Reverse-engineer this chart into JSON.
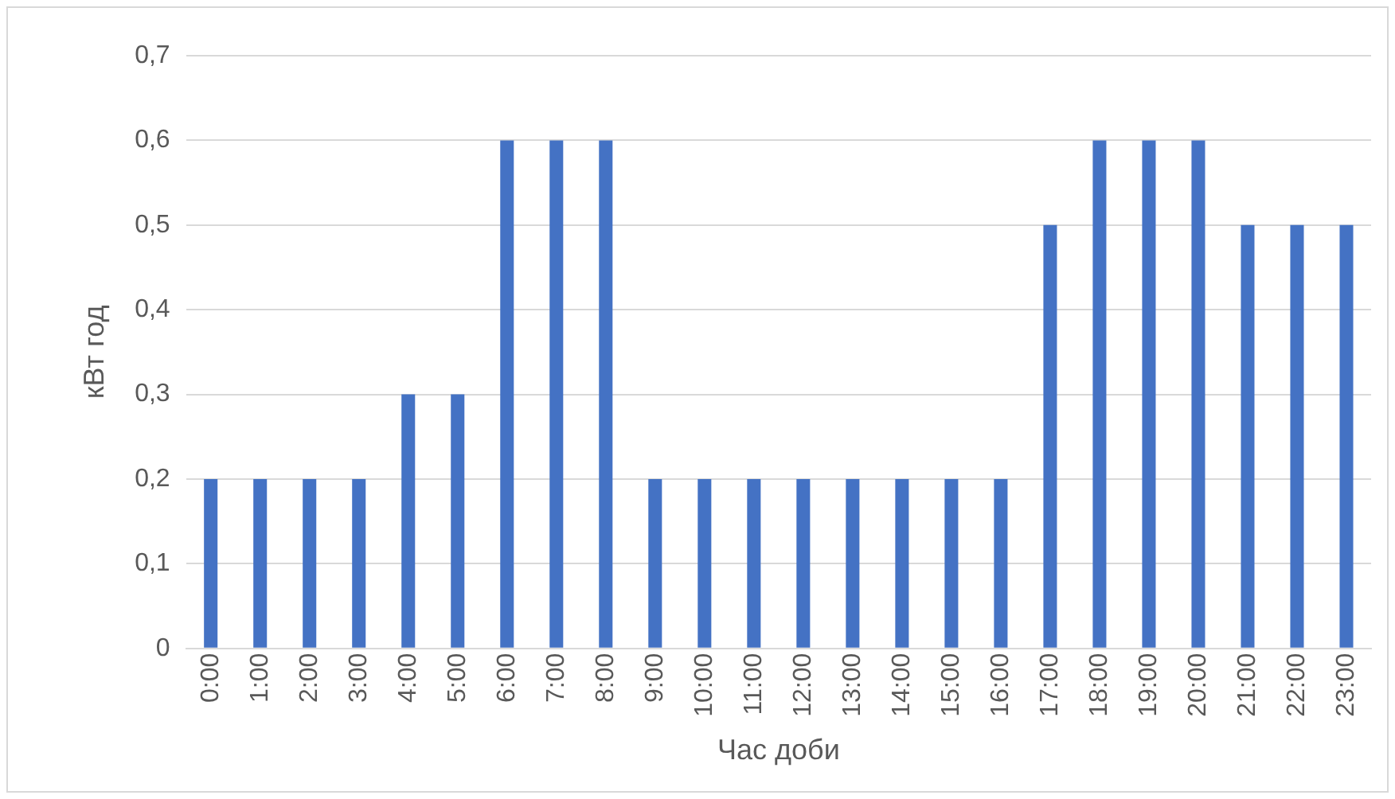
{
  "chart_data": {
    "type": "bar",
    "xlabel": "Час доби",
    "ylabel": "кВт год",
    "categories": [
      "0:00",
      "1:00",
      "2:00",
      "3:00",
      "4:00",
      "5:00",
      "6:00",
      "7:00",
      "8:00",
      "9:00",
      "10:00",
      "11:00",
      "12:00",
      "13:00",
      "14:00",
      "15:00",
      "16:00",
      "17:00",
      "18:00",
      "19:00",
      "20:00",
      "21:00",
      "22:00",
      "23:00"
    ],
    "values": [
      0.2,
      0.2,
      0.2,
      0.2,
      0.3,
      0.3,
      0.6,
      0.6,
      0.6,
      0.2,
      0.2,
      0.2,
      0.2,
      0.2,
      0.2,
      0.2,
      0.2,
      0.5,
      0.6,
      0.6,
      0.6,
      0.5,
      0.5,
      0.5
    ],
    "color": "#4472c4",
    "ylim": [
      0,
      0.7
    ],
    "yticks": [
      {
        "value": 0,
        "label": "0"
      },
      {
        "value": 0.1,
        "label": "0,1"
      },
      {
        "value": 0.2,
        "label": "0,2"
      },
      {
        "value": 0.3,
        "label": "0,3"
      },
      {
        "value": 0.4,
        "label": "0,4"
      },
      {
        "value": 0.5,
        "label": "0,5"
      },
      {
        "value": 0.6,
        "label": "0,6"
      },
      {
        "value": 0.7,
        "label": "0,7"
      }
    ],
    "grid": "y"
  }
}
